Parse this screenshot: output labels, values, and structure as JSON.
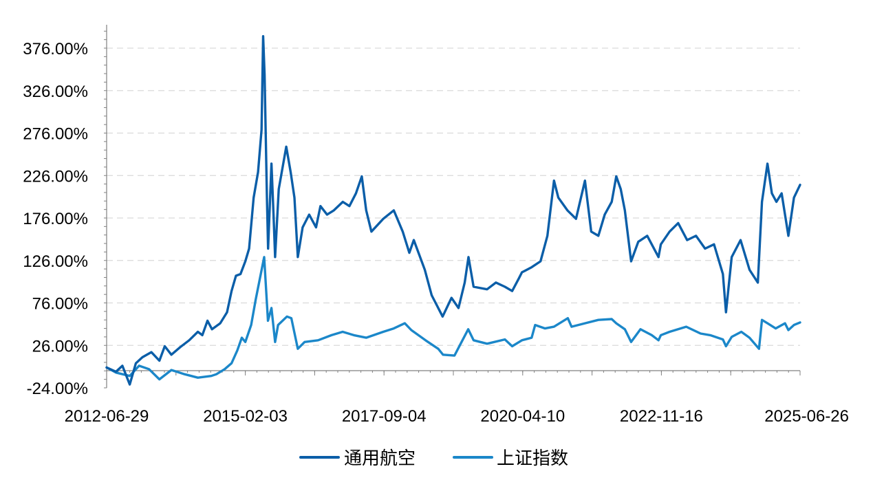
{
  "chart_data": {
    "type": "line",
    "title": "",
    "xlabel": "",
    "ylabel": "",
    "y_unit": "%",
    "ylim": [
      -24.0,
      400.0
    ],
    "y_ticks": [
      -24.0,
      26.0,
      76.0,
      126.0,
      176.0,
      226.0,
      276.0,
      326.0,
      376.0
    ],
    "y_tick_labels": [
      "-24.00%",
      "26.00%",
      "76.00%",
      "126.00%",
      "176.00%",
      "226.00%",
      "276.00%",
      "326.00%",
      "376.00%"
    ],
    "x_range": [
      "2012-06-29",
      "2025-06-26"
    ],
    "x_tick_labels": [
      "2012-06-29",
      "2015-02-03",
      "2017-09-04",
      "2020-04-10",
      "2022-11-16",
      "2025-06-26"
    ],
    "grid": true,
    "legend_position": "bottom",
    "series": [
      {
        "name": "通用航空",
        "color": "#0b5ea8",
        "points": [
          [
            "2012-06-29",
            0
          ],
          [
            "2012-09-01",
            -5
          ],
          [
            "2012-10-15",
            2
          ],
          [
            "2012-12-04",
            -20
          ],
          [
            "2013-01-15",
            5
          ],
          [
            "2013-03-01",
            12
          ],
          [
            "2013-05-01",
            18
          ],
          [
            "2013-06-25",
            8
          ],
          [
            "2013-08-01",
            25
          ],
          [
            "2013-09-15",
            15
          ],
          [
            "2013-11-15",
            24
          ],
          [
            "2014-01-15",
            32
          ],
          [
            "2014-03-15",
            42
          ],
          [
            "2014-04-15",
            38
          ],
          [
            "2014-05-20",
            55
          ],
          [
            "2014-06-20",
            45
          ],
          [
            "2014-08-15",
            52
          ],
          [
            "2014-10-01",
            65
          ],
          [
            "2014-11-01",
            90
          ],
          [
            "2014-12-01",
            108
          ],
          [
            "2015-01-01",
            110
          ],
          [
            "2015-02-03",
            125
          ],
          [
            "2015-03-01",
            140
          ],
          [
            "2015-04-01",
            200
          ],
          [
            "2015-05-01",
            230
          ],
          [
            "2015-05-25",
            280
          ],
          [
            "2015-06-05",
            390
          ],
          [
            "2015-06-15",
            345
          ],
          [
            "2015-07-01",
            200
          ],
          [
            "2015-07-09",
            140
          ],
          [
            "2015-08-01",
            240
          ],
          [
            "2015-08-15",
            180
          ],
          [
            "2015-08-26",
            130
          ],
          [
            "2015-09-20",
            210
          ],
          [
            "2015-11-10",
            260
          ],
          [
            "2015-12-10",
            230
          ],
          [
            "2016-01-05",
            200
          ],
          [
            "2016-01-28",
            130
          ],
          [
            "2016-03-01",
            165
          ],
          [
            "2016-04-15",
            180
          ],
          [
            "2016-06-01",
            165
          ],
          [
            "2016-07-01",
            190
          ],
          [
            "2016-08-15",
            180
          ],
          [
            "2016-10-01",
            185
          ],
          [
            "2016-12-01",
            195
          ],
          [
            "2017-01-15",
            190
          ],
          [
            "2017-03-01",
            205
          ],
          [
            "2017-04-10",
            225
          ],
          [
            "2017-05-10",
            185
          ],
          [
            "2017-06-15",
            160
          ],
          [
            "2017-09-04",
            175
          ],
          [
            "2017-11-15",
            185
          ],
          [
            "2018-01-15",
            160
          ],
          [
            "2018-03-01",
            135
          ],
          [
            "2018-04-01",
            150
          ],
          [
            "2018-06-15",
            115
          ],
          [
            "2018-08-01",
            85
          ],
          [
            "2018-10-15",
            60
          ],
          [
            "2018-12-15",
            82
          ],
          [
            "2019-02-01",
            70
          ],
          [
            "2019-03-15",
            100
          ],
          [
            "2019-04-10",
            130
          ],
          [
            "2019-05-15",
            95
          ],
          [
            "2019-08-15",
            92
          ],
          [
            "2019-10-15",
            100
          ],
          [
            "2019-12-15",
            95
          ],
          [
            "2020-02-03",
            90
          ],
          [
            "2020-03-20",
            105
          ],
          [
            "2020-04-10",
            112
          ],
          [
            "2020-06-15",
            118
          ],
          [
            "2020-08-15",
            125
          ],
          [
            "2020-10-01",
            155
          ],
          [
            "2020-11-15",
            220
          ],
          [
            "2020-12-15",
            200
          ],
          [
            "2021-02-15",
            185
          ],
          [
            "2021-04-15",
            175
          ],
          [
            "2021-06-15",
            220
          ],
          [
            "2021-07-28",
            160
          ],
          [
            "2021-09-15",
            155
          ],
          [
            "2021-10-28",
            180
          ],
          [
            "2021-12-15",
            195
          ],
          [
            "2022-01-15",
            225
          ],
          [
            "2022-02-15",
            210
          ],
          [
            "2022-03-15",
            185
          ],
          [
            "2022-04-27",
            125
          ],
          [
            "2022-06-15",
            148
          ],
          [
            "2022-08-15",
            155
          ],
          [
            "2022-10-31",
            130
          ],
          [
            "2022-11-16",
            145
          ],
          [
            "2023-01-15",
            160
          ],
          [
            "2023-03-15",
            170
          ],
          [
            "2023-05-15",
            150
          ],
          [
            "2023-07-15",
            155
          ],
          [
            "2023-09-15",
            140
          ],
          [
            "2023-11-15",
            145
          ],
          [
            "2024-01-15",
            110
          ],
          [
            "2024-02-05",
            65
          ],
          [
            "2024-03-15",
            130
          ],
          [
            "2024-05-15",
            150
          ],
          [
            "2024-07-15",
            115
          ],
          [
            "2024-09-10",
            100
          ],
          [
            "2024-10-08",
            195
          ],
          [
            "2024-11-15",
            240
          ],
          [
            "2024-12-15",
            205
          ],
          [
            "2025-01-15",
            195
          ],
          [
            "2025-02-20",
            205
          ],
          [
            "2025-04-07",
            155
          ],
          [
            "2025-05-15",
            200
          ],
          [
            "2025-06-26",
            215
          ]
        ]
      },
      {
        "name": "上证指数",
        "color": "#1b87c9",
        "points": [
          [
            "2012-06-29",
            0
          ],
          [
            "2012-09-01",
            -6
          ],
          [
            "2012-12-04",
            -10
          ],
          [
            "2013-02-06",
            2
          ],
          [
            "2013-04-15",
            -2
          ],
          [
            "2013-06-25",
            -14
          ],
          [
            "2013-09-15",
            -3
          ],
          [
            "2013-12-15",
            -8
          ],
          [
            "2014-03-15",
            -12
          ],
          [
            "2014-06-15",
            -10
          ],
          [
            "2014-07-20",
            -8
          ],
          [
            "2014-09-15",
            -2
          ],
          [
            "2014-11-01",
            5
          ],
          [
            "2014-12-10",
            20
          ],
          [
            "2015-01-10",
            35
          ],
          [
            "2015-02-03",
            30
          ],
          [
            "2015-03-15",
            50
          ],
          [
            "2015-04-15",
            80
          ],
          [
            "2015-06-12",
            130
          ],
          [
            "2015-07-08",
            55
          ],
          [
            "2015-08-01",
            70
          ],
          [
            "2015-08-26",
            30
          ],
          [
            "2015-09-15",
            50
          ],
          [
            "2015-11-15",
            60
          ],
          [
            "2015-12-15",
            58
          ],
          [
            "2016-01-28",
            22
          ],
          [
            "2016-03-15",
            30
          ],
          [
            "2016-06-15",
            32
          ],
          [
            "2016-09-15",
            38
          ],
          [
            "2016-11-30",
            42
          ],
          [
            "2017-02-15",
            38
          ],
          [
            "2017-05-10",
            35
          ],
          [
            "2017-09-04",
            42
          ],
          [
            "2017-11-15",
            46
          ],
          [
            "2018-01-29",
            52
          ],
          [
            "2018-03-15",
            44
          ],
          [
            "2018-06-20",
            32
          ],
          [
            "2018-09-15",
            22
          ],
          [
            "2018-10-18",
            15
          ],
          [
            "2019-01-04",
            14
          ],
          [
            "2019-04-08",
            45
          ],
          [
            "2019-05-15",
            32
          ],
          [
            "2019-08-15",
            28
          ],
          [
            "2019-12-15",
            33
          ],
          [
            "2020-02-03",
            25
          ],
          [
            "2020-04-10",
            32
          ],
          [
            "2020-06-15",
            35
          ],
          [
            "2020-07-09",
            50
          ],
          [
            "2020-09-15",
            46
          ],
          [
            "2020-11-15",
            48
          ],
          [
            "2021-02-18",
            58
          ],
          [
            "2021-03-15",
            48
          ],
          [
            "2021-06-15",
            52
          ],
          [
            "2021-09-15",
            56
          ],
          [
            "2021-12-15",
            57
          ],
          [
            "2022-01-15",
            52
          ],
          [
            "2022-03-15",
            45
          ],
          [
            "2022-04-27",
            30
          ],
          [
            "2022-06-30",
            45
          ],
          [
            "2022-09-15",
            38
          ],
          [
            "2022-10-31",
            32
          ],
          [
            "2022-11-16",
            38
          ],
          [
            "2023-01-15",
            42
          ],
          [
            "2023-05-09",
            48
          ],
          [
            "2023-08-15",
            40
          ],
          [
            "2023-10-20",
            38
          ],
          [
            "2024-01-15",
            33
          ],
          [
            "2024-02-05",
            25
          ],
          [
            "2024-03-15",
            36
          ],
          [
            "2024-05-20",
            42
          ],
          [
            "2024-07-15",
            35
          ],
          [
            "2024-09-18",
            22
          ],
          [
            "2024-10-08",
            56
          ],
          [
            "2024-11-15",
            52
          ],
          [
            "2025-01-10",
            46
          ],
          [
            "2025-03-15",
            52
          ],
          [
            "2025-04-07",
            44
          ],
          [
            "2025-05-15",
            50
          ],
          [
            "2025-06-26",
            53
          ]
        ]
      }
    ]
  }
}
